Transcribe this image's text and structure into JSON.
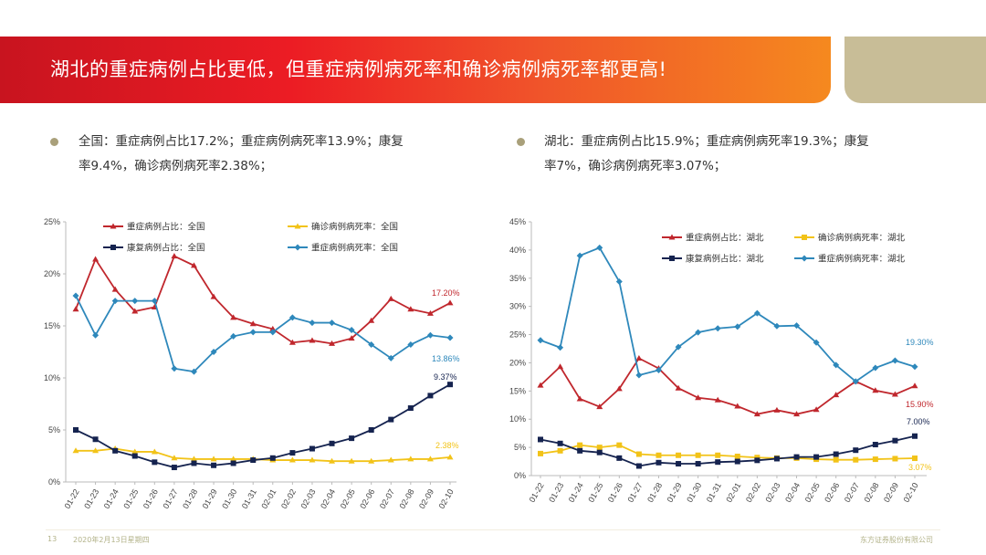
{
  "header": {
    "title": "湖北的重症病例占比更低，但重症病例病死率和确诊病例病死率都更高!"
  },
  "summary": {
    "national": {
      "line1": "全国：重症病例占比17.2%；重症病例病死率13.9%；康复",
      "line2": "率9.4%，确诊病例病死率2.38%；"
    },
    "hubei": {
      "line1": "湖北：重症病例占比15.9%；重症病例病死率19.3%；康复",
      "line2": "率7%，确诊病例病死率3.07%；"
    }
  },
  "footer": {
    "page": "13",
    "date": "2020年2月13日星期四",
    "company": "东方证券股份有限公司"
  },
  "colors": {
    "red": "#c0272d",
    "yellow": "#f2c318",
    "navy": "#15234f",
    "blue": "#2e88bb"
  },
  "chart_data": [
    {
      "type": "line",
      "categories": [
        "01-22",
        "01-23",
        "01-24",
        "01-25",
        "01-26",
        "01-27",
        "01-28",
        "01-29",
        "01-30",
        "01-31",
        "02-01",
        "02-02",
        "02-03",
        "02-04",
        "02-05",
        "02-06",
        "02-07",
        "02-08",
        "02-09",
        "02-10"
      ],
      "ylim": [
        0,
        25
      ],
      "yticks": [
        "0%",
        "5%",
        "10%",
        "15%",
        "20%",
        "25%"
      ],
      "legend_position": "top",
      "series": [
        {
          "name": "重症病例占比：全国",
          "color": "red",
          "marker": "triangle",
          "end_label": "17.20%",
          "values": [
            16.6,
            21.4,
            18.5,
            16.4,
            16.8,
            21.7,
            20.8,
            17.8,
            15.8,
            15.2,
            14.7,
            13.4,
            13.6,
            13.3,
            13.8,
            15.5,
            17.6,
            16.6,
            16.2,
            17.2
          ]
        },
        {
          "name": "确诊病例病死率：全国",
          "color": "yellow",
          "marker": "triangle",
          "end_label": "2.38%",
          "values": [
            3.0,
            3.0,
            3.2,
            2.9,
            2.9,
            2.3,
            2.2,
            2.2,
            2.2,
            2.2,
            2.1,
            2.1,
            2.1,
            2.0,
            2.0,
            2.0,
            2.1,
            2.2,
            2.2,
            2.38
          ]
        },
        {
          "name": "康复病例占比：全国",
          "color": "navy",
          "marker": "square",
          "end_label": "9.37%",
          "values": [
            5.0,
            4.1,
            3.0,
            2.5,
            1.9,
            1.4,
            1.8,
            1.6,
            1.8,
            2.1,
            2.3,
            2.8,
            3.2,
            3.7,
            4.2,
            5.0,
            6.0,
            7.1,
            8.3,
            9.37
          ]
        },
        {
          "name": "重症病例病死率：全国",
          "color": "blue",
          "marker": "diamond",
          "end_label": "13.86%",
          "values": [
            17.9,
            14.1,
            17.4,
            17.4,
            17.4,
            10.9,
            10.6,
            12.5,
            14.0,
            14.4,
            14.4,
            15.8,
            15.3,
            15.3,
            14.6,
            13.2,
            11.9,
            13.2,
            14.1,
            13.86
          ]
        }
      ]
    },
    {
      "type": "line",
      "categories": [
        "01-22",
        "01-23",
        "01-24",
        "01-25",
        "01-26",
        "01-27",
        "01-28",
        "01-29",
        "01-30",
        "01-31",
        "02-01",
        "02-02",
        "02-03",
        "02-04",
        "02-05",
        "02-06",
        "02-07",
        "02-08",
        "02-09",
        "02-10"
      ],
      "ylim": [
        0,
        45
      ],
      "yticks": [
        "0%",
        "5%",
        "10%",
        "15%",
        "20%",
        "25%",
        "30%",
        "35%",
        "40%",
        "45%"
      ],
      "legend_position": "top-right",
      "series": [
        {
          "name": "重症病例占比：湖北",
          "color": "red",
          "marker": "triangle",
          "end_label": "15.90%",
          "values": [
            16.0,
            19.3,
            13.6,
            12.2,
            15.4,
            20.8,
            19.0,
            15.5,
            13.8,
            13.4,
            12.3,
            10.9,
            11.6,
            10.9,
            11.7,
            14.3,
            16.7,
            15.1,
            14.4,
            15.9
          ]
        },
        {
          "name": "确诊病例病死率：湖北",
          "color": "yellow",
          "marker": "square",
          "end_label": "3.07%",
          "values": [
            3.9,
            4.4,
            5.4,
            5.0,
            5.4,
            3.8,
            3.6,
            3.6,
            3.6,
            3.6,
            3.4,
            3.2,
            3.1,
            3.1,
            2.9,
            2.8,
            2.8,
            2.9,
            3.0,
            3.07
          ]
        },
        {
          "name": "康复病例占比：湖北",
          "color": "navy",
          "marker": "square",
          "end_label": "7.00%",
          "values": [
            6.4,
            5.7,
            4.4,
            4.1,
            3.1,
            1.7,
            2.3,
            2.1,
            2.1,
            2.4,
            2.5,
            2.7,
            3.0,
            3.3,
            3.3,
            3.8,
            4.5,
            5.5,
            6.2,
            7.0
          ]
        },
        {
          "name": "重症病例病死率：湖北",
          "color": "blue",
          "marker": "diamond",
          "end_label": "19.30%",
          "values": [
            24.0,
            22.7,
            39.0,
            40.4,
            34.4,
            17.8,
            18.7,
            22.8,
            25.4,
            26.1,
            26.4,
            28.8,
            26.5,
            26.6,
            23.6,
            19.6,
            16.7,
            19.1,
            20.4,
            19.3
          ]
        }
      ]
    }
  ]
}
